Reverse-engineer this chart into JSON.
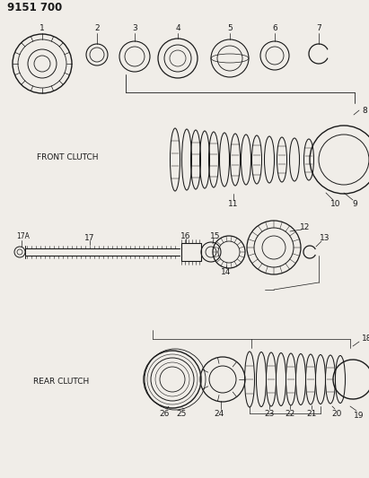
{
  "title": "9151 700",
  "bg": "#f0ede8",
  "lc": "#1a1a1a",
  "figsize": [
    4.11,
    5.33
  ],
  "dpi": 100,
  "front_clutch_label": "FRONT CLUTCH",
  "rear_clutch_label": "REAR CLUTCH"
}
